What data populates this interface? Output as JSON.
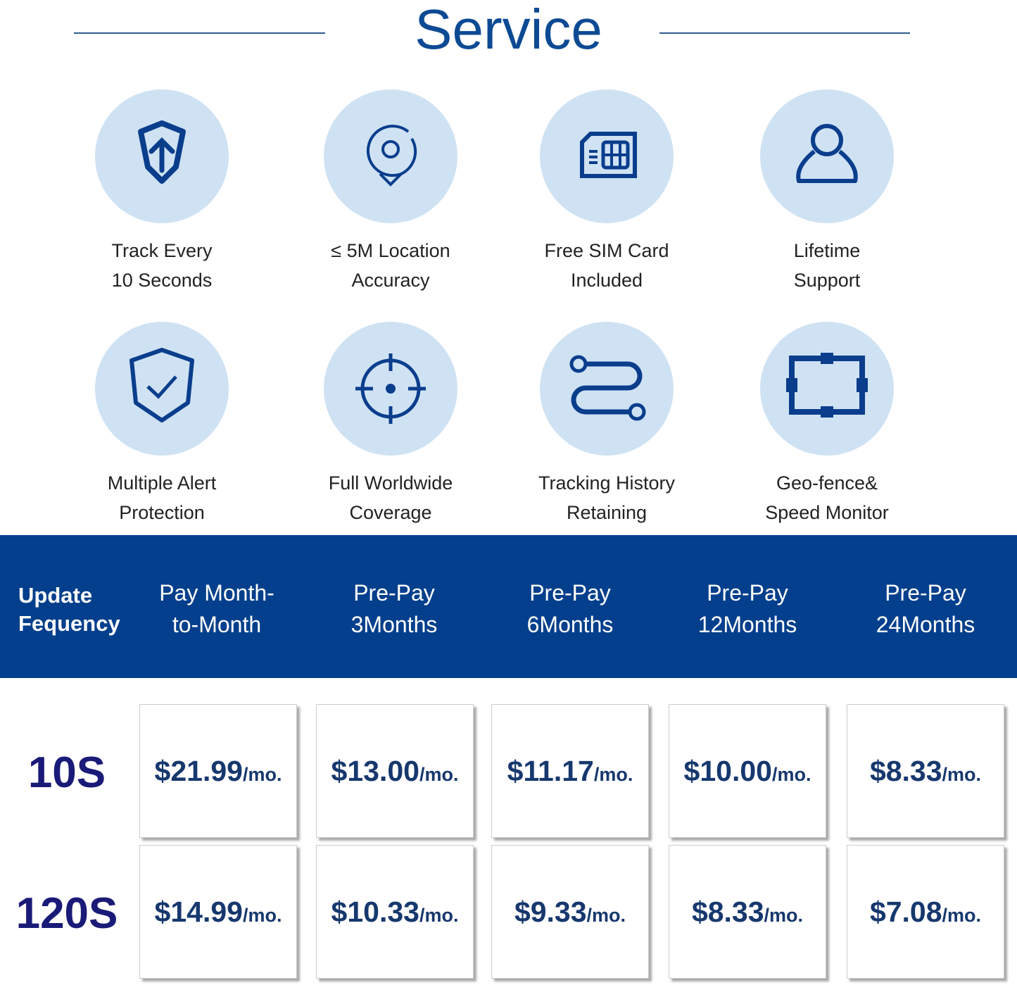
{
  "title": "Service",
  "features": [
    {
      "icon": "shield-arrow-up-icon",
      "line1": "Track Every",
      "line2": "10 Seconds"
    },
    {
      "icon": "location-pin-icon",
      "line1": "≤ 5M Location",
      "line2": "Accuracy"
    },
    {
      "icon": "sim-card-icon",
      "line1": "Free SIM Card",
      "line2": "Included"
    },
    {
      "icon": "user-icon",
      "line1": "Lifetime",
      "line2": "Support"
    },
    {
      "icon": "shield-check-icon",
      "line1": "Multiple Alert",
      "line2": "Protection"
    },
    {
      "icon": "crosshair-icon",
      "line1": "Full Worldwide",
      "line2": "Coverage"
    },
    {
      "icon": "route-icon",
      "line1": "Tracking History",
      "line2": "Retaining"
    },
    {
      "icon": "geofence-icon",
      "line1": "Geo-fence&",
      "line2": "Speed Monitor"
    }
  ],
  "table": {
    "header_first": [
      "Update",
      "Fequency"
    ],
    "plans": [
      [
        "Pay Month-",
        "to-Month"
      ],
      [
        "Pre-Pay",
        "3Months"
      ],
      [
        "Pre-Pay",
        "6Months"
      ],
      [
        "Pre-Pay",
        "12Months"
      ],
      [
        "Pre-Pay",
        "24Months"
      ]
    ],
    "unit": "/mo.",
    "rows": [
      {
        "label": "10S",
        "prices": [
          "$21.99",
          "$13.00",
          "$11.17",
          "$10.00",
          "$8.33"
        ]
      },
      {
        "label": "120S",
        "prices": [
          "$14.99",
          "$10.33",
          "$9.33",
          "$8.33",
          "$7.08"
        ]
      }
    ]
  },
  "colors": {
    "header_bg": "#033f8c",
    "circle": "#cfe2f3",
    "icon": "#0a3d8c",
    "price": "#17386e"
  }
}
